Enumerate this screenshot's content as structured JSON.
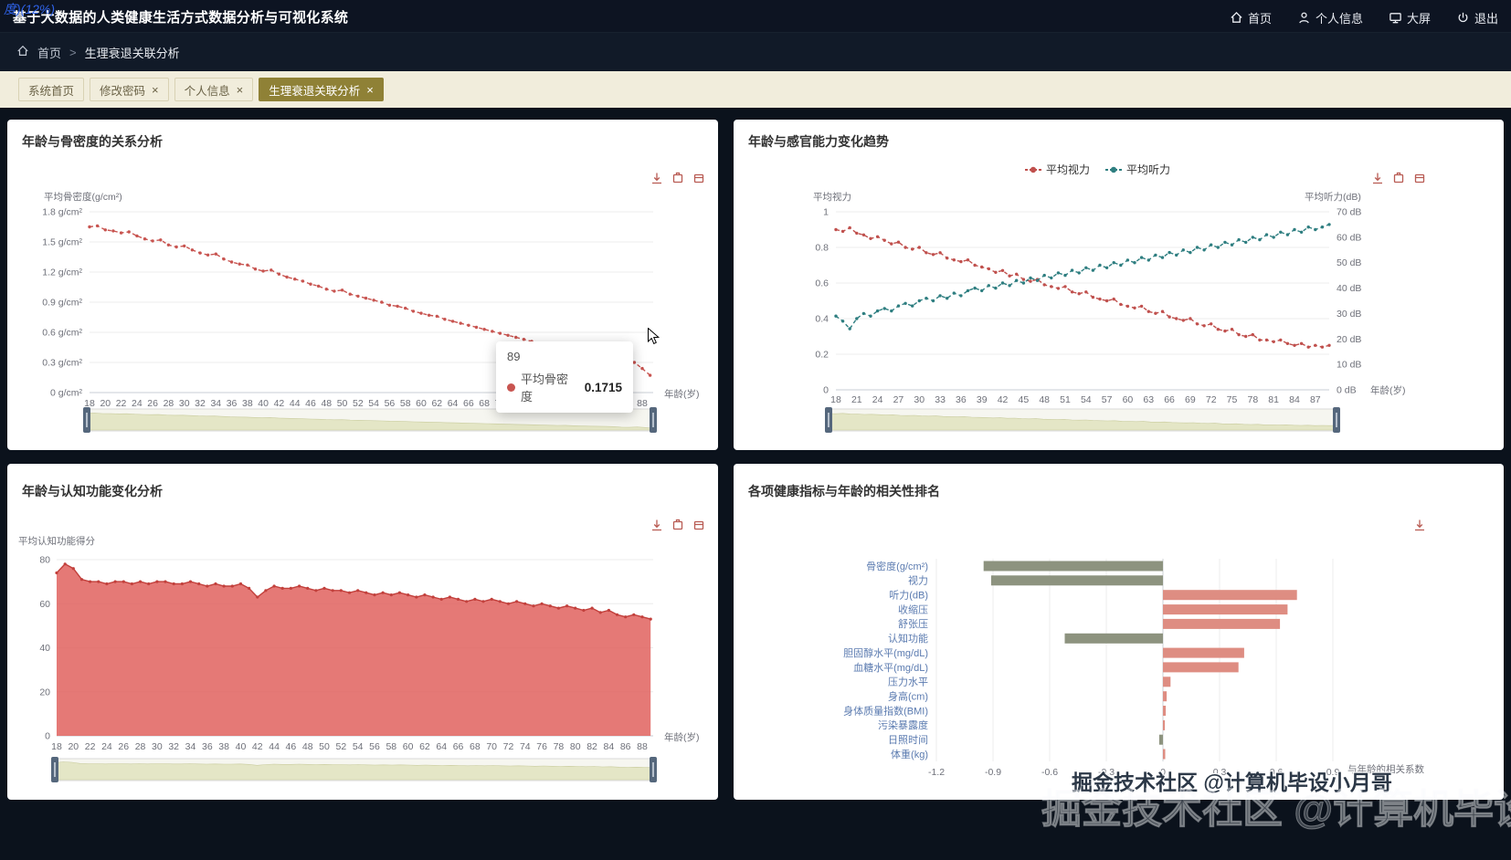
{
  "app": {
    "title": "基于大数据的人类健康生活方式数据分析与可视化系统",
    "corner_fragment": "度)(12%)",
    "nav": [
      {
        "label": "首页",
        "icon": "home-icon"
      },
      {
        "label": "个人信息",
        "icon": "user-icon"
      },
      {
        "label": "大屏",
        "icon": "screen-icon"
      },
      {
        "label": "退出",
        "icon": "power-icon"
      }
    ]
  },
  "breadcrumb": {
    "home": "首页",
    "current": "生理衰退关联分析"
  },
  "tabs": [
    {
      "label": "系统首页",
      "closable": false,
      "active": false
    },
    {
      "label": "修改密码",
      "closable": true,
      "active": false
    },
    {
      "label": "个人信息",
      "closable": true,
      "active": false
    },
    {
      "label": "生理衰退关联分析",
      "closable": true,
      "active": true
    }
  ],
  "watermark": {
    "text": "掘金技术社区 @计算机毕设小月哥"
  },
  "colors": {
    "page_bg": "#0b121c",
    "header_bg": "#0d1422",
    "tabbar_bg": "#f1eddc",
    "active_tab_bg": "#8f8136",
    "panel_bg": "#ffffff",
    "bone_red": "#c85450",
    "vision_red": "#c0504d",
    "hearing_teal": "#2e7e80",
    "cognitive_fill": "#e0625e",
    "bar_negative": "#8d937f",
    "bar_positive": "#de8d82",
    "toolbox_icon": "#b85a52",
    "axis_label": "#6E7079",
    "category_label": "#5b7bb0"
  },
  "chart_data": [
    {
      "id": "bone",
      "type": "line",
      "title": "年龄与骨密度的关系分析",
      "ylabel": "平均骨密度(g/cm²)",
      "xlabel": "年龄(岁)",
      "age_min": 18,
      "age_max": 89,
      "x_tick_step": 2,
      "x_tick_max": 88,
      "ylim": [
        0,
        1.8
      ],
      "y_ticks": [
        "0 g/cm²",
        "0.3 g/cm²",
        "0.6 g/cm²",
        "0.9 g/cm²",
        "1.2 g/cm²",
        "1.5 g/cm²",
        "1.8 g/cm²"
      ],
      "series": [
        {
          "name": "平均骨密度",
          "color": "#c85450",
          "values": [
            1.65,
            1.66,
            1.62,
            1.61,
            1.59,
            1.6,
            1.56,
            1.53,
            1.51,
            1.52,
            1.47,
            1.45,
            1.46,
            1.42,
            1.39,
            1.37,
            1.38,
            1.33,
            1.3,
            1.28,
            1.27,
            1.23,
            1.21,
            1.22,
            1.18,
            1.15,
            1.13,
            1.11,
            1.08,
            1.06,
            1.03,
            1.01,
            1.02,
            0.98,
            0.96,
            0.94,
            0.92,
            0.9,
            0.87,
            0.86,
            0.84,
            0.81,
            0.79,
            0.77,
            0.76,
            0.73,
            0.71,
            0.69,
            0.67,
            0.65,
            0.63,
            0.61,
            0.59,
            0.57,
            0.55,
            0.53,
            0.51,
            0.49,
            0.47,
            0.45,
            0.46,
            0.42,
            0.4,
            0.38,
            0.37,
            0.35,
            0.33,
            0.28,
            0.26,
            0.3,
            0.24,
            0.1715
          ]
        }
      ],
      "tooltip": {
        "x": "89",
        "series": "平均骨密度",
        "value": "0.1715"
      }
    },
    {
      "id": "sensory",
      "type": "line",
      "title": "年龄与感官能力变化趋势",
      "legend": [
        "平均视力",
        "平均听力"
      ],
      "ylabel_left": "平均视力",
      "ylabel_right": "平均听力(dB)",
      "xlabel": "年龄(岁)",
      "age_min": 18,
      "age_max": 89,
      "x_tick_step": 3,
      "x_tick_max": 87,
      "ylim_left": [
        0,
        1
      ],
      "ylim_right": [
        0,
        70
      ],
      "y_ticks_left": [
        "0",
        "0.2",
        "0.4",
        "0.6",
        "0.8",
        "1"
      ],
      "y_ticks_right": [
        "0 dB",
        "10 dB",
        "20 dB",
        "30 dB",
        "40 dB",
        "50 dB",
        "60 dB",
        "70 dB"
      ],
      "series": [
        {
          "name": "平均视力",
          "axis": "left",
          "color": "#c0504d",
          "values": [
            0.9,
            0.89,
            0.91,
            0.88,
            0.87,
            0.85,
            0.86,
            0.84,
            0.82,
            0.83,
            0.8,
            0.79,
            0.8,
            0.77,
            0.76,
            0.77,
            0.74,
            0.73,
            0.72,
            0.73,
            0.7,
            0.69,
            0.68,
            0.66,
            0.67,
            0.64,
            0.65,
            0.62,
            0.61,
            0.62,
            0.59,
            0.58,
            0.57,
            0.58,
            0.55,
            0.54,
            0.55,
            0.52,
            0.51,
            0.5,
            0.51,
            0.48,
            0.47,
            0.46,
            0.47,
            0.44,
            0.43,
            0.44,
            0.41,
            0.4,
            0.39,
            0.4,
            0.37,
            0.36,
            0.37,
            0.34,
            0.33,
            0.34,
            0.31,
            0.3,
            0.31,
            0.28,
            0.28,
            0.27,
            0.28,
            0.26,
            0.25,
            0.26,
            0.24,
            0.25,
            0.24,
            0.25
          ]
        },
        {
          "name": "平均听力",
          "axis": "right",
          "color": "#2e7e80",
          "values": [
            29,
            27,
            24,
            28,
            30,
            29,
            31,
            32,
            31,
            33,
            34,
            33,
            35,
            36,
            35,
            37,
            36,
            38,
            37,
            39,
            40,
            39,
            41,
            40,
            42,
            41,
            43,
            42,
            44,
            43,
            45,
            44,
            46,
            45,
            47,
            46,
            48,
            47,
            49,
            48,
            50,
            49,
            51,
            50,
            52,
            51,
            53,
            52,
            54,
            53,
            55,
            54,
            56,
            55,
            57,
            56,
            58,
            57,
            59,
            58,
            60,
            59,
            61,
            60,
            62,
            61,
            63,
            62,
            64,
            63,
            64,
            65
          ]
        }
      ]
    },
    {
      "id": "cognitive",
      "type": "area",
      "title": "年龄与认知功能变化分析",
      "ylabel": "平均认知功能得分",
      "xlabel": "年龄(岁)",
      "age_min": 18,
      "age_max": 89,
      "x_tick_step": 2,
      "x_tick_max": 88,
      "ylim": [
        0,
        80
      ],
      "y_ticks": [
        "0",
        "20",
        "40",
        "60",
        "80"
      ],
      "series": [
        {
          "name": "平均认知功能得分",
          "color": "#e0625e",
          "line_color": "#c2403c",
          "values": [
            74,
            78,
            76,
            71,
            70,
            70,
            69,
            70,
            70,
            69,
            70,
            69,
            70,
            70,
            69,
            69,
            70,
            69,
            68,
            69,
            68,
            68,
            69,
            67,
            63,
            66,
            68,
            67,
            67,
            68,
            67,
            66,
            67,
            66,
            66,
            65,
            66,
            65,
            64,
            65,
            64,
            65,
            64,
            63,
            64,
            63,
            62,
            63,
            62,
            61,
            62,
            61,
            62,
            61,
            60,
            61,
            60,
            59,
            60,
            59,
            58,
            59,
            58,
            57,
            58,
            56,
            57,
            55,
            54,
            55,
            54,
            53
          ]
        }
      ]
    },
    {
      "id": "correlation",
      "type": "bar",
      "title": "各项健康指标与年龄的相关性排名",
      "xlabel": "与年龄的相关系数",
      "categories": [
        "骨密度(g/cm²)",
        "视力",
        "听力(dB)",
        "收缩压",
        "舒张压",
        "认知功能",
        "胆固醇水平(mg/dL)",
        "血糖水平(mg/dL)",
        "压力水平",
        "身高(cm)",
        "身体质量指数(BMI)",
        "污染暴露度",
        "日照时间",
        "体重(kg)"
      ],
      "values": [
        -0.95,
        -0.91,
        0.71,
        0.66,
        0.62,
        -0.52,
        0.43,
        0.4,
        0.04,
        0.02,
        0.015,
        0.01,
        -0.02,
        0.012
      ],
      "xlim": [
        -1.2,
        0.9
      ],
      "x_ticks": [
        "-1.2",
        "-0.9",
        "-0.6",
        "-0.3",
        "0",
        "0.3",
        "0.6",
        "0.9"
      ],
      "colors": {
        "negative": "#8d937f",
        "positive": "#de8d82"
      }
    }
  ]
}
